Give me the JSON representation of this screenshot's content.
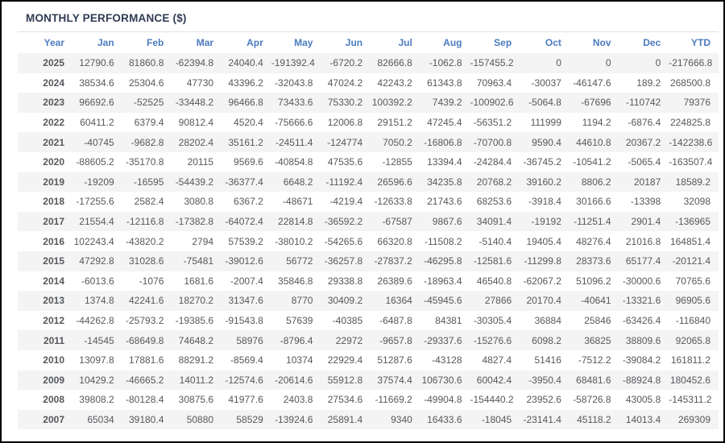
{
  "title": "MONTHLY PERFORMANCE ($)",
  "colors": {
    "header_blue": "#4c7bc0",
    "title_navy": "#2f3b52",
    "negative_red": "#f96a60",
    "positive_gray": "#55585c",
    "year_dark": "#333333",
    "stripe_gray": "#f4f4f4",
    "frame_border": "#000000",
    "divider_gray": "#e2e2e2"
  },
  "chart_data": {
    "type": "table",
    "title": "MONTHLY PERFORMANCE ($)",
    "columns": [
      "Year",
      "Jan",
      "Feb",
      "Mar",
      "Apr",
      "May",
      "Jun",
      "Jul",
      "Aug",
      "Sep",
      "Oct",
      "Nov",
      "Dec",
      "YTD"
    ],
    "rows": [
      {
        "year": "2025",
        "values": [
          "12790.6",
          "81860.8",
          "-62394.8",
          "24040.4",
          "-191392.4",
          "-6720.2",
          "82666.8",
          "-1062.8",
          "-157455.2",
          "0",
          "0",
          "0",
          "-217666.8"
        ]
      },
      {
        "year": "2024",
        "values": [
          "38534.6",
          "25304.6",
          "47730",
          "43396.2",
          "-32043.8",
          "47024.2",
          "42243.2",
          "61343.8",
          "70963.4",
          "-30037",
          "-46147.6",
          "189.2",
          "268500.8"
        ]
      },
      {
        "year": "2023",
        "values": [
          "96692.6",
          "-52525",
          "-33448.2",
          "96466.8",
          "73433.6",
          "75330.2",
          "100392.2",
          "7439.2",
          "-100902.6",
          "-5064.8",
          "-67696",
          "-110742",
          "79376"
        ]
      },
      {
        "year": "2022",
        "values": [
          "60411.2",
          "6379.4",
          "90812.4",
          "4520.4",
          "-75666.6",
          "12006.8",
          "29151.2",
          "47245.4",
          "-56351.2",
          "111999",
          "1194.2",
          "-6876.4",
          "224825.8"
        ]
      },
      {
        "year": "2021",
        "values": [
          "-40745",
          "-9682.8",
          "28202.4",
          "35161.2",
          "-24511.4",
          "-124774",
          "7050.2",
          "-16806.8",
          "-70700.8",
          "9590.4",
          "44610.8",
          "20367.2",
          "-142238.6"
        ]
      },
      {
        "year": "2020",
        "values": [
          "-88605.2",
          "-35170.8",
          "20115",
          "9569.6",
          "-40854.8",
          "47535.6",
          "-12855",
          "13394.4",
          "-24284.4",
          "-36745.2",
          "-10541.2",
          "-5065.4",
          "-163507.4"
        ]
      },
      {
        "year": "2019",
        "values": [
          "-19209",
          "-16595",
          "-54439.2",
          "-36377.4",
          "6648.2",
          "-11192.4",
          "26596.6",
          "34235.8",
          "20768.2",
          "39160.2",
          "8806.2",
          "20187",
          "18589.2"
        ]
      },
      {
        "year": "2018",
        "values": [
          "-17255.6",
          "2582.4",
          "3080.8",
          "6367.2",
          "-48671",
          "-4219.4",
          "-12633.8",
          "21743.6",
          "68253.6",
          "-3918.4",
          "30166.6",
          "-13398",
          "32098"
        ]
      },
      {
        "year": "2017",
        "values": [
          "21554.4",
          "-12116.8",
          "-17382.8",
          "-64072.4",
          "22814.8",
          "-36592.2",
          "-67587",
          "9867.6",
          "34091.4",
          "-19192",
          "-11251.4",
          "2901.4",
          "-136965"
        ]
      },
      {
        "year": "2016",
        "values": [
          "102243.4",
          "-43820.2",
          "2794",
          "57539.2",
          "-38010.2",
          "-54265.6",
          "66320.8",
          "-11508.2",
          "-5140.4",
          "19405.4",
          "48276.4",
          "21016.8",
          "164851.4"
        ]
      },
      {
        "year": "2015",
        "values": [
          "47292.8",
          "31028.6",
          "-75481",
          "-39012.6",
          "56772",
          "-36257.8",
          "-27837.2",
          "-46295.8",
          "-12581.6",
          "-11299.8",
          "28373.6",
          "65177.4",
          "-20121.4"
        ]
      },
      {
        "year": "2014",
        "values": [
          "-6013.6",
          "-1076",
          "1681.6",
          "-2007.4",
          "35846.8",
          "29338.8",
          "26389.6",
          "-18963.4",
          "46540.8",
          "-62067.2",
          "51096.2",
          "-30000.6",
          "70765.6"
        ]
      },
      {
        "year": "2013",
        "values": [
          "1374.8",
          "42241.6",
          "18270.2",
          "31347.6",
          "8770",
          "30409.2",
          "16364",
          "-45945.6",
          "27866",
          "20170.4",
          "-40641",
          "-13321.6",
          "96905.6"
        ]
      },
      {
        "year": "2012",
        "values": [
          "-44262.8",
          "-25793.2",
          "-19385.6",
          "-91543.8",
          "57639",
          "-40385",
          "-6487.8",
          "84381",
          "-30305.4",
          "36884",
          "25846",
          "-63426.4",
          "-116840"
        ]
      },
      {
        "year": "2011",
        "values": [
          "-14545",
          "-68649.8",
          "74648.2",
          "58976",
          "-8796.4",
          "22972",
          "-9657.8",
          "-29337.6",
          "-15276.6",
          "6098.2",
          "36825",
          "38809.6",
          "92065.8"
        ]
      },
      {
        "year": "2010",
        "values": [
          "13097.8",
          "17881.6",
          "88291.2",
          "-8569.4",
          "10374",
          "22929.4",
          "51287.6",
          "-43128",
          "4827.4",
          "51416",
          "-7512.2",
          "-39084.2",
          "161811.2"
        ]
      },
      {
        "year": "2009",
        "values": [
          "10429.2",
          "-46665.2",
          "14011.2",
          "-12574.6",
          "-20614.6",
          "55912.8",
          "37574.4",
          "106730.6",
          "60042.4",
          "-3950.4",
          "68481.6",
          "-88924.8",
          "180452.6"
        ]
      },
      {
        "year": "2008",
        "values": [
          "39808.2",
          "-80128.4",
          "30875.6",
          "41977.6",
          "2403.8",
          "27534.6",
          "-11669.2",
          "-49904.8",
          "-154440.2",
          "23952.6",
          "-58726.8",
          "43005.8",
          "-145311.2"
        ]
      },
      {
        "year": "2007",
        "values": [
          "65034",
          "39180.4",
          "50880",
          "58529",
          "-13924.6",
          "25891.4",
          "9340",
          "16433.6",
          "-18045",
          "-23141.4",
          "45118.2",
          "14013.4",
          "269309"
        ]
      }
    ]
  }
}
